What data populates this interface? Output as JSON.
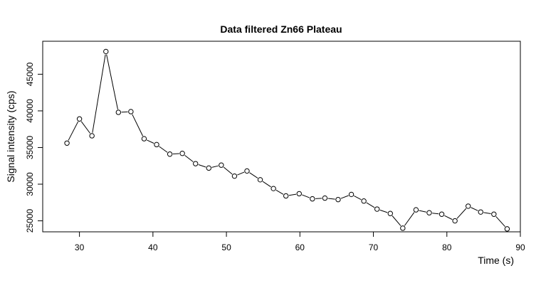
{
  "chart_data": {
    "type": "line",
    "title": "Data filtered Zn66 Plateau",
    "xlabel": "Time (s)",
    "ylabel": "Signal intensity (cps)",
    "xlim": [
      25,
      90
    ],
    "ylim": [
      23500,
      49500
    ],
    "x_ticks": [
      30,
      40,
      50,
      60,
      70,
      80,
      90
    ],
    "y_ticks": [
      25000,
      30000,
      35000,
      40000,
      45000
    ],
    "grid": false,
    "markers": "open-circle",
    "series": [
      {
        "x": [
          28.3,
          30.0,
          31.7,
          33.6,
          35.3,
          37.0,
          38.8,
          40.5,
          42.3,
          44.0,
          45.8,
          47.6,
          49.3,
          51.1,
          52.8,
          54.6,
          56.4,
          58.1,
          59.9,
          61.7,
          63.4,
          65.2,
          67.0,
          68.7,
          70.5,
          72.3,
          74.0,
          75.8,
          77.6,
          79.3,
          81.1,
          82.9,
          84.6,
          86.4,
          88.2
        ],
        "values": [
          35600,
          38900,
          36600,
          48100,
          39800,
          39900,
          36200,
          35400,
          34100,
          34200,
          32800,
          32200,
          32600,
          31100,
          31800,
          30600,
          29400,
          28400,
          28700,
          28000,
          28100,
          27900,
          28600,
          27700,
          26600,
          26000,
          24000,
          26500,
          26100,
          25900,
          25000,
          27000,
          26200,
          25900,
          23900
        ]
      }
    ]
  }
}
